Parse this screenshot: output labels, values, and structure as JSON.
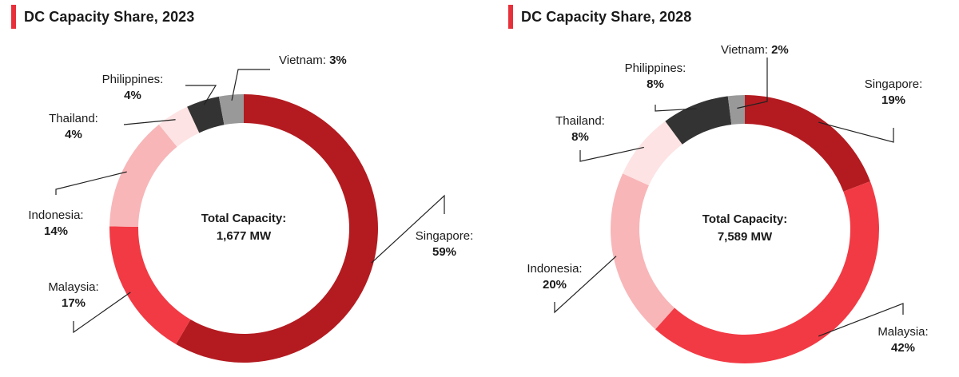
{
  "colors": {
    "accent": "#e8303a",
    "Singapore": "#b31b20",
    "Malaysia": "#f23a44",
    "Indonesia": "#f8b6b8",
    "Thailand": "#fde3e3",
    "Philippines": "#333333",
    "Vietnam": "#999999",
    "leader": "#222222"
  },
  "chart_data": [
    {
      "type": "pie",
      "variant": "donut",
      "title": "DC Capacity Share, 2023",
      "center_label": "Total Capacity:",
      "center_value": "1,677 MW",
      "categories": [
        "Singapore",
        "Malaysia",
        "Indonesia",
        "Thailand",
        "Philippines",
        "Vietnam"
      ],
      "values": [
        59,
        17,
        14,
        4,
        4,
        3
      ],
      "value_labels": [
        "59%",
        "17%",
        "14%",
        "4%",
        "4%",
        "3%"
      ],
      "slice_names": [
        "Singapore:",
        "Malaysia:",
        "Indonesia:",
        "Thailand:",
        "Philippines:",
        "Vietnam:"
      ],
      "unit": "%"
    },
    {
      "type": "pie",
      "variant": "donut",
      "title": "DC Capacity Share, 2028",
      "center_label": "Total Capacity:",
      "center_value": "7,589 MW",
      "categories": [
        "Singapore",
        "Malaysia",
        "Indonesia",
        "Thailand",
        "Philippines",
        "Vietnam"
      ],
      "values": [
        19,
        42,
        20,
        8,
        8,
        2
      ],
      "value_labels": [
        "19%",
        "42%",
        "20%",
        "8%",
        "8%",
        "2%"
      ],
      "slice_names": [
        "Singapore:",
        "Malaysia:",
        "Indonesia:",
        "Thailand:",
        "Philippines:",
        "Vietnam:"
      ],
      "unit": "%"
    }
  ]
}
